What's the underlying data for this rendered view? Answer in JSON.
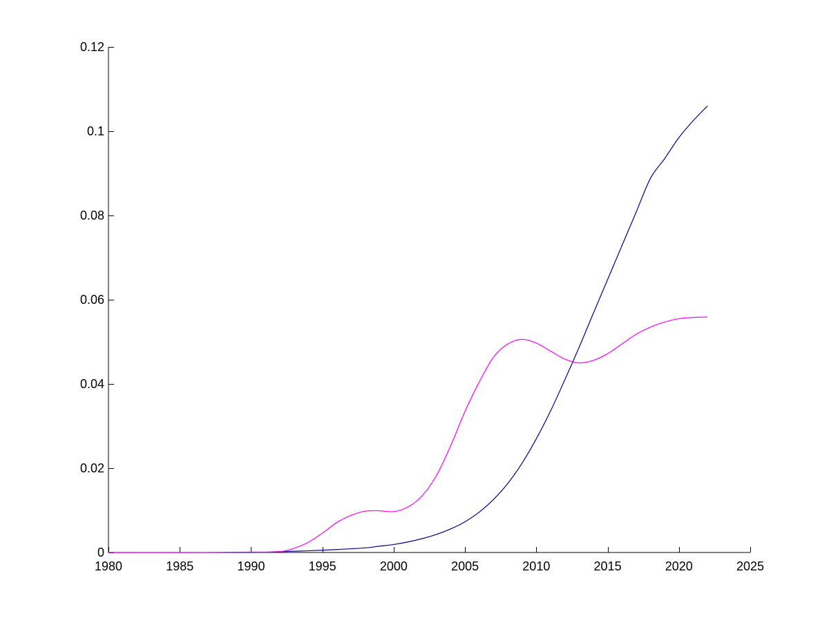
{
  "chart_data": {
    "type": "line",
    "title": "",
    "xlabel": "",
    "ylabel": "",
    "xlim": [
      1980,
      2025
    ],
    "ylim": [
      0,
      0.12
    ],
    "xticks": [
      1980,
      1985,
      1990,
      1995,
      2000,
      2005,
      2010,
      2015,
      2020,
      2025
    ],
    "xtick_labels": [
      "1980",
      "1985",
      "1990",
      "1995",
      "2000",
      "2005",
      "2010",
      "2015",
      "2020",
      "2025"
    ],
    "yticks": [
      0,
      0.02,
      0.04,
      0.06,
      0.08,
      0.1,
      0.12
    ],
    "ytick_labels": [
      "0",
      "0.02",
      "0.04",
      "0.06",
      "0.08",
      "0.1",
      "0.12"
    ],
    "grid": false,
    "legend": "none",
    "series": [
      {
        "color": "#00008b",
        "x": [
          1980,
          1985,
          1990,
          1992,
          1994,
          1996,
          1998,
          1999,
          2000,
          2001,
          2002,
          2003,
          2004,
          2005,
          2006,
          2007,
          2008,
          2009,
          2010,
          2011,
          2012,
          2013,
          2014,
          2015,
          2016,
          2017,
          2018,
          2019,
          2020,
          2021,
          2022
        ],
        "y": [
          0,
          0,
          0,
          0.0002,
          0.0004,
          0.0007,
          0.0011,
          0.0015,
          0.0019,
          0.0025,
          0.0033,
          0.0043,
          0.0056,
          0.0073,
          0.0096,
          0.0126,
          0.0164,
          0.0212,
          0.027,
          0.0336,
          0.041,
          0.0487,
          0.0568,
          0.0648,
          0.0728,
          0.0808,
          0.0888,
          0.0935,
          0.0985,
          0.1025,
          0.106
        ]
      },
      {
        "color": "#ff00ff",
        "x": [
          1980,
          1985,
          1990,
          1992,
          1993,
          1994,
          1995,
          1996,
          1997,
          1998,
          1999,
          2000,
          2001,
          2002,
          2003,
          2004,
          2005,
          2006,
          2007,
          2008,
          2009,
          2010,
          2011,
          2012,
          2013,
          2014,
          2015,
          2016,
          2017,
          2018,
          2019,
          2020,
          2021,
          2022
        ],
        "y": [
          0,
          0,
          0.0001,
          0.0002,
          0.001,
          0.0024,
          0.0046,
          0.0071,
          0.0088,
          0.0098,
          0.0099,
          0.0097,
          0.0108,
          0.0135,
          0.0183,
          0.0254,
          0.0335,
          0.0405,
          0.0464,
          0.0495,
          0.0506,
          0.0497,
          0.0478,
          0.0459,
          0.045,
          0.0456,
          0.0472,
          0.0495,
          0.0518,
          0.0535,
          0.0547,
          0.0555,
          0.0558,
          0.0559
        ]
      }
    ]
  }
}
